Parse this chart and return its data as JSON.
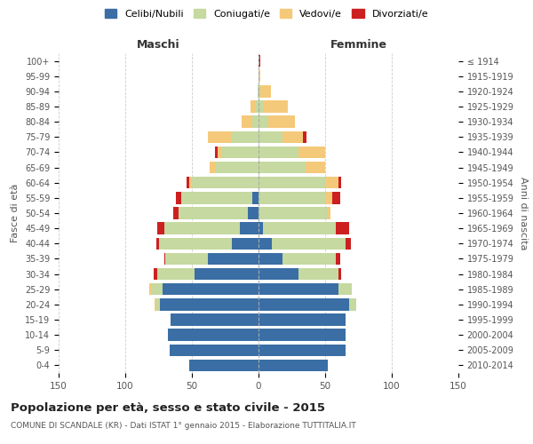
{
  "age_groups": [
    "0-4",
    "5-9",
    "10-14",
    "15-19",
    "20-24",
    "25-29",
    "30-34",
    "35-39",
    "40-44",
    "45-49",
    "50-54",
    "55-59",
    "60-64",
    "65-69",
    "70-74",
    "75-79",
    "80-84",
    "85-89",
    "90-94",
    "95-99",
    "100+"
  ],
  "birth_years": [
    "2010-2014",
    "2005-2009",
    "2000-2004",
    "1995-1999",
    "1990-1994",
    "1985-1989",
    "1980-1984",
    "1975-1979",
    "1970-1974",
    "1965-1969",
    "1960-1964",
    "1955-1959",
    "1950-1954",
    "1945-1949",
    "1940-1944",
    "1935-1939",
    "1930-1934",
    "1925-1929",
    "1920-1924",
    "1915-1919",
    "≤ 1914"
  ],
  "males": {
    "celibi": [
      52,
      67,
      68,
      66,
      74,
      72,
      48,
      38,
      20,
      14,
      8,
      5,
      0,
      0,
      0,
      0,
      0,
      0,
      0,
      0,
      0
    ],
    "coniugati": [
      0,
      0,
      0,
      0,
      3,
      8,
      28,
      32,
      55,
      57,
      52,
      53,
      50,
      32,
      28,
      20,
      5,
      2,
      1,
      0,
      0
    ],
    "vedovi": [
      0,
      0,
      0,
      0,
      1,
      2,
      0,
      0,
      0,
      0,
      0,
      0,
      2,
      5,
      3,
      18,
      8,
      4,
      0,
      0,
      0
    ],
    "divorziati": [
      0,
      0,
      0,
      0,
      0,
      0,
      3,
      1,
      2,
      5,
      4,
      4,
      2,
      0,
      2,
      0,
      0,
      0,
      0,
      0,
      0
    ]
  },
  "females": {
    "nubili": [
      52,
      65,
      65,
      65,
      68,
      60,
      30,
      18,
      10,
      3,
      0,
      0,
      0,
      0,
      0,
      0,
      0,
      0,
      0,
      0,
      0
    ],
    "coniugate": [
      0,
      0,
      0,
      0,
      5,
      10,
      30,
      40,
      55,
      55,
      52,
      50,
      50,
      35,
      30,
      18,
      7,
      4,
      1,
      0,
      0
    ],
    "vedove": [
      0,
      0,
      0,
      0,
      0,
      0,
      0,
      0,
      0,
      0,
      2,
      5,
      10,
      15,
      20,
      15,
      20,
      18,
      8,
      1,
      0
    ],
    "divorziate": [
      0,
      0,
      0,
      0,
      0,
      0,
      2,
      3,
      4,
      10,
      0,
      6,
      2,
      0,
      0,
      3,
      0,
      0,
      0,
      0,
      1
    ]
  },
  "colors": {
    "celibi_nubili": "#3a6ea5",
    "coniugati": "#c5d9a0",
    "vedovi": "#f5c97a",
    "divorziati": "#cc2020"
  },
  "title": "Popolazione per età, sesso e stato civile - 2015",
  "subtitle": "COMUNE DI SCANDALE (KR) - Dati ISTAT 1° gennaio 2015 - Elaborazione TUTTITALIA.IT",
  "xlabel_left": "Maschi",
  "xlabel_right": "Femmine",
  "ylabel_left": "Fasce di età",
  "ylabel_right": "Anni di nascita",
  "xlim": 150,
  "bg_color": "#ffffff",
  "grid_color": "#cccccc"
}
